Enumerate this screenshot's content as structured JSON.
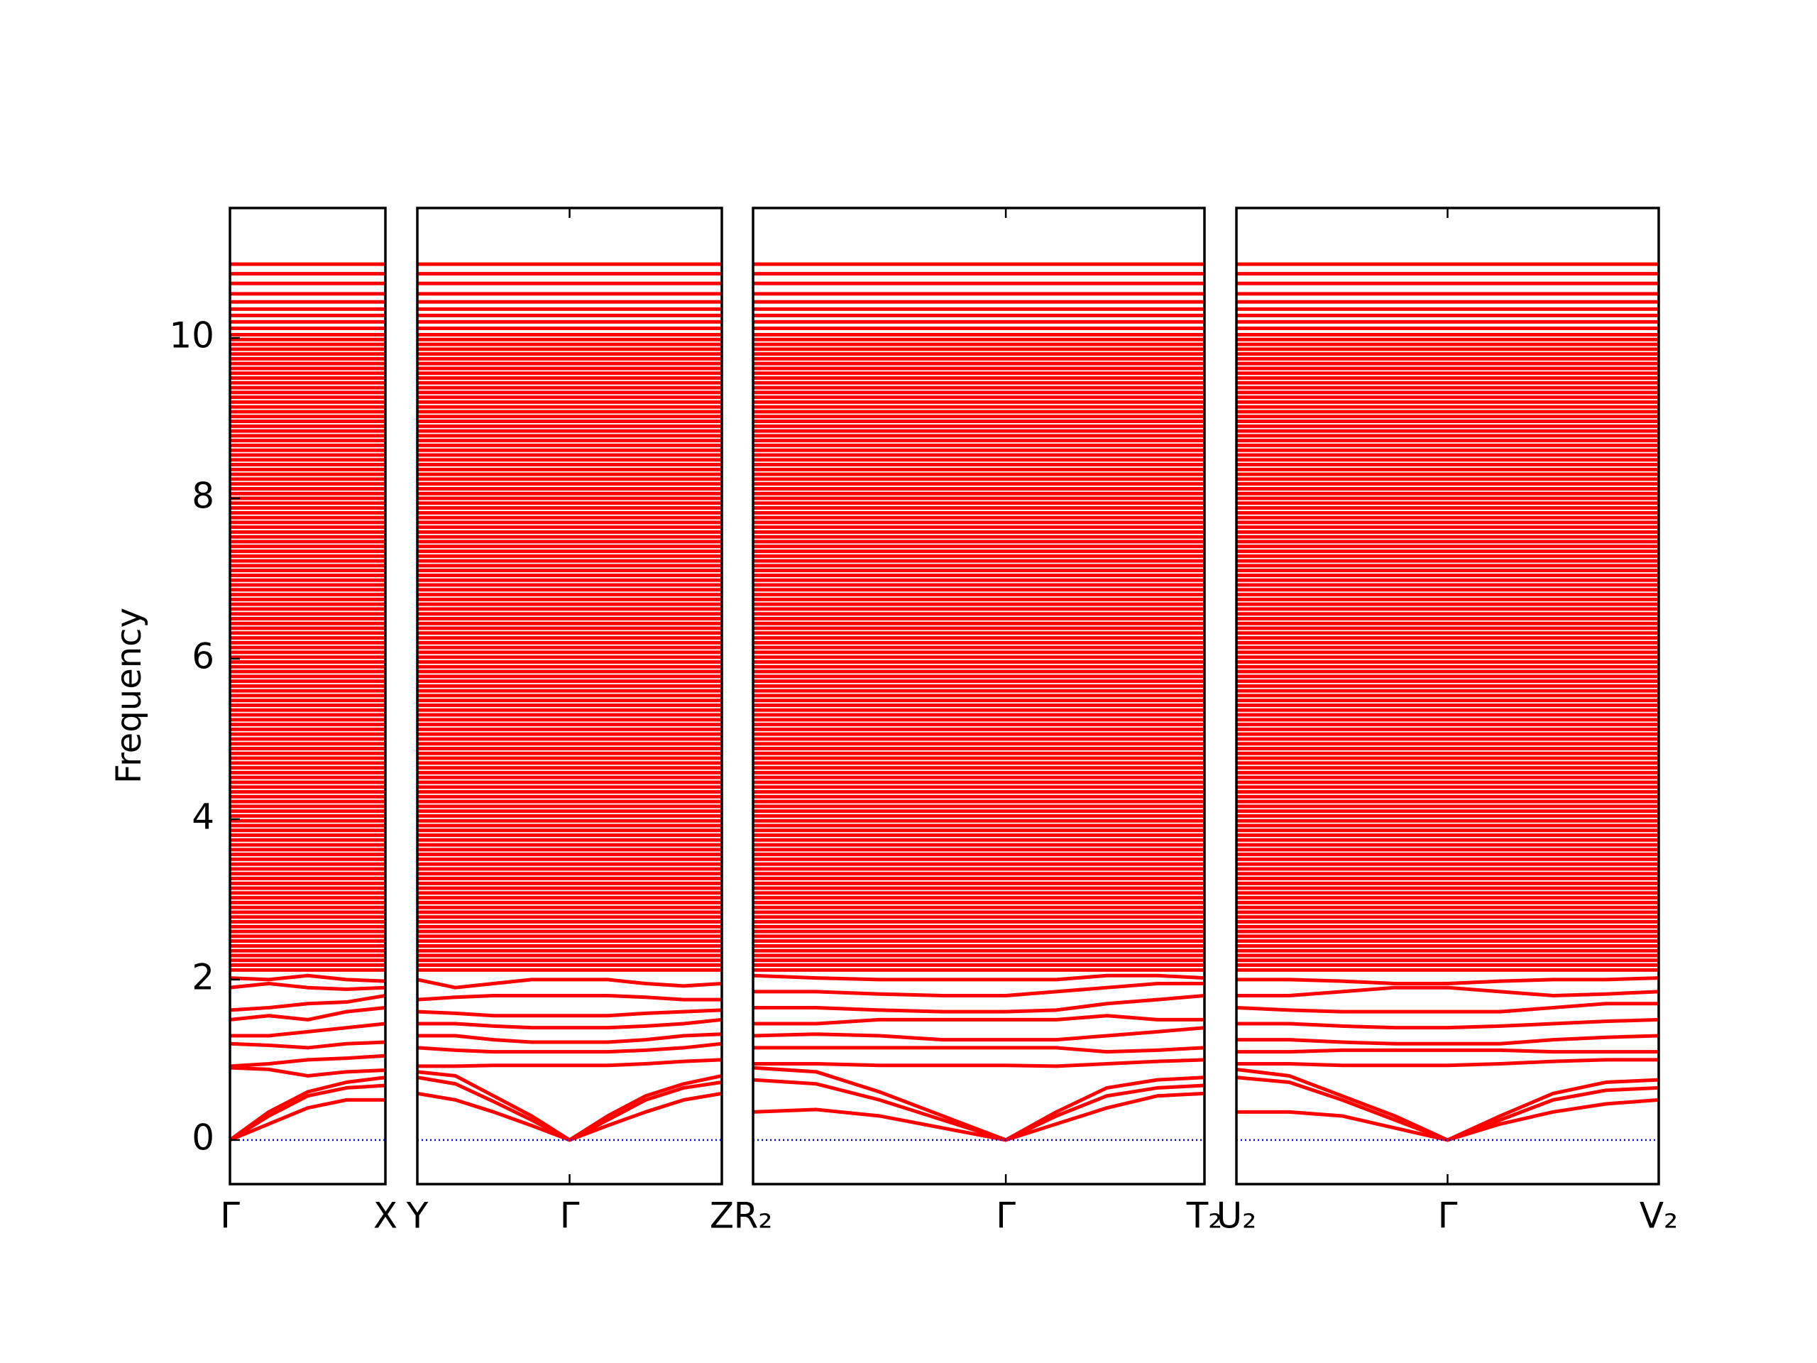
{
  "chart_data": {
    "type": "line",
    "ylabel": "Frequency",
    "ylim": [
      -0.55,
      11.62
    ],
    "yticks": [
      0,
      2,
      4,
      6,
      8,
      10
    ],
    "color": "#ff0000",
    "hline": 0,
    "hline_color": "#0000ff",
    "panels": [
      {
        "xlim": [
          0,
          1
        ],
        "xticks": [
          {
            "value": 0,
            "label": "Γ"
          },
          {
            "value": 1,
            "label": "X"
          }
        ],
        "x": [
          0,
          0.25,
          0.5,
          0.75,
          1
        ],
        "series": [
          {
            "values": [
              0,
              0.2,
              0.4,
              0.5,
              0.5
            ]
          },
          {
            "values": [
              0,
              0.3,
              0.55,
              0.65,
              0.68
            ]
          },
          {
            "values": [
              0,
              0.35,
              0.6,
              0.72,
              0.78
            ]
          },
          {
            "values": [
              0.9,
              0.88,
              0.8,
              0.85,
              0.87
            ]
          },
          {
            "values": [
              0.92,
              0.95,
              1.0,
              1.02,
              1.05
            ]
          },
          {
            "values": [
              1.2,
              1.18,
              1.15,
              1.2,
              1.22
            ]
          },
          {
            "values": [
              1.3,
              1.3,
              1.35,
              1.4,
              1.45
            ]
          },
          {
            "values": [
              1.5,
              1.55,
              1.5,
              1.6,
              1.65
            ]
          },
          {
            "values": [
              1.62,
              1.65,
              1.7,
              1.72,
              1.8
            ]
          },
          {
            "values": [
              1.9,
              1.95,
              1.9,
              1.88,
              1.9
            ]
          },
          {
            "values": [
              2.02,
              2.0,
              2.05,
              2.0,
              1.98
            ]
          }
        ]
      },
      {
        "xlim": [
          0,
          2
        ],
        "xticks": [
          {
            "value": 0,
            "label": "Y"
          },
          {
            "value": 1,
            "label": "Γ"
          },
          {
            "value": 2,
            "label": "Z"
          }
        ],
        "x": [
          0,
          0.25,
          0.5,
          0.75,
          1,
          1.25,
          1.5,
          1.75,
          2
        ],
        "series": [
          {
            "values": [
              0.58,
              0.5,
              0.35,
              0.18,
              0,
              0.18,
              0.35,
              0.5,
              0.58
            ]
          },
          {
            "values": [
              0.78,
              0.7,
              0.48,
              0.25,
              0,
              0.25,
              0.5,
              0.65,
              0.72
            ]
          },
          {
            "values": [
              0.85,
              0.8,
              0.55,
              0.3,
              0,
              0.3,
              0.55,
              0.7,
              0.8
            ]
          },
          {
            "values": [
              0.92,
              0.92,
              0.93,
              0.93,
              0.93,
              0.93,
              0.95,
              0.98,
              1.0
            ]
          },
          {
            "values": [
              1.15,
              1.12,
              1.1,
              1.1,
              1.1,
              1.1,
              1.12,
              1.15,
              1.2
            ]
          },
          {
            "values": [
              1.3,
              1.3,
              1.25,
              1.22,
              1.22,
              1.22,
              1.25,
              1.3,
              1.32
            ]
          },
          {
            "values": [
              1.45,
              1.45,
              1.42,
              1.4,
              1.4,
              1.4,
              1.42,
              1.45,
              1.5
            ]
          },
          {
            "values": [
              1.6,
              1.58,
              1.55,
              1.55,
              1.55,
              1.55,
              1.58,
              1.6,
              1.62
            ]
          },
          {
            "values": [
              1.75,
              1.78,
              1.8,
              1.8,
              1.8,
              1.8,
              1.78,
              1.75,
              1.75
            ]
          },
          {
            "values": [
              2.0,
              1.9,
              1.95,
              2.0,
              2.0,
              2.0,
              1.95,
              1.92,
              1.95
            ]
          }
        ]
      },
      {
        "xlim": [
          0,
          1.786
        ],
        "xticks": [
          {
            "value": 0,
            "label": "R₂"
          },
          {
            "value": 1,
            "label": "Γ"
          },
          {
            "value": 1.786,
            "label": "T₂"
          }
        ],
        "x": [
          0,
          0.25,
          0.5,
          0.75,
          1,
          1.2,
          1.4,
          1.6,
          1.786
        ],
        "series": [
          {
            "values": [
              0.35,
              0.38,
              0.3,
              0.15,
              0,
              0.2,
              0.4,
              0.55,
              0.58
            ]
          },
          {
            "values": [
              0.75,
              0.7,
              0.5,
              0.25,
              0,
              0.3,
              0.55,
              0.65,
              0.68
            ]
          },
          {
            "values": [
              0.9,
              0.85,
              0.6,
              0.3,
              0,
              0.35,
              0.65,
              0.75,
              0.78
            ]
          },
          {
            "values": [
              0.95,
              0.95,
              0.93,
              0.93,
              0.93,
              0.92,
              0.95,
              0.98,
              1.0
            ]
          },
          {
            "values": [
              1.15,
              1.15,
              1.15,
              1.15,
              1.15,
              1.15,
              1.1,
              1.12,
              1.15
            ]
          },
          {
            "values": [
              1.3,
              1.32,
              1.3,
              1.25,
              1.25,
              1.25,
              1.3,
              1.35,
              1.4
            ]
          },
          {
            "values": [
              1.45,
              1.45,
              1.5,
              1.5,
              1.5,
              1.5,
              1.55,
              1.5,
              1.5
            ]
          },
          {
            "values": [
              1.65,
              1.65,
              1.62,
              1.6,
              1.6,
              1.62,
              1.7,
              1.75,
              1.8
            ]
          },
          {
            "values": [
              1.85,
              1.85,
              1.82,
              1.8,
              1.8,
              1.85,
              1.9,
              1.95,
              1.95
            ]
          },
          {
            "values": [
              2.05,
              2.02,
              2.0,
              2.0,
              2.0,
              2.0,
              2.05,
              2.05,
              2.02
            ]
          }
        ]
      },
      {
        "xlim": [
          0,
          2
        ],
        "xticks": [
          {
            "value": 0,
            "label": "U₂"
          },
          {
            "value": 1,
            "label": "Γ"
          },
          {
            "value": 2,
            "label": "V₂"
          }
        ],
        "x": [
          0,
          0.25,
          0.5,
          0.75,
          1,
          1.25,
          1.5,
          1.75,
          2
        ],
        "series": [
          {
            "values": [
              0.35,
              0.35,
              0.3,
              0.15,
              0,
              0.2,
              0.35,
              0.45,
              0.5
            ]
          },
          {
            "values": [
              0.78,
              0.72,
              0.5,
              0.25,
              0,
              0.25,
              0.5,
              0.62,
              0.65
            ]
          },
          {
            "values": [
              0.88,
              0.8,
              0.55,
              0.3,
              0,
              0.3,
              0.58,
              0.72,
              0.75
            ]
          },
          {
            "values": [
              0.95,
              0.95,
              0.93,
              0.93,
              0.93,
              0.95,
              0.98,
              1.0,
              1.0
            ]
          },
          {
            "values": [
              1.1,
              1.1,
              1.12,
              1.12,
              1.12,
              1.12,
              1.1,
              1.1,
              1.1
            ]
          },
          {
            "values": [
              1.25,
              1.25,
              1.22,
              1.2,
              1.2,
              1.2,
              1.25,
              1.28,
              1.3
            ]
          },
          {
            "values": [
              1.45,
              1.45,
              1.42,
              1.4,
              1.4,
              1.42,
              1.45,
              1.48,
              1.5
            ]
          },
          {
            "values": [
              1.65,
              1.62,
              1.6,
              1.6,
              1.6,
              1.6,
              1.65,
              1.7,
              1.7
            ]
          },
          {
            "values": [
              1.8,
              1.8,
              1.85,
              1.9,
              1.9,
              1.85,
              1.8,
              1.82,
              1.85
            ]
          },
          {
            "values": [
              2.0,
              2.0,
              1.98,
              1.95,
              1.95,
              1.98,
              2.0,
              2.0,
              2.02
            ]
          }
        ]
      }
    ],
    "flat_bands": [
      2.12,
      2.18,
      2.24,
      2.3,
      2.36,
      2.42,
      2.48,
      2.54,
      2.6,
      2.66,
      2.72,
      2.78,
      2.84,
      2.9,
      2.96,
      3.02,
      3.08,
      3.14,
      3.2,
      3.26,
      3.32,
      3.38,
      3.44,
      3.5,
      3.56,
      3.62,
      3.68,
      3.74,
      3.8,
      3.86,
      3.92,
      3.98,
      4.04,
      4.1,
      4.16,
      4.22,
      4.28,
      4.34,
      4.4,
      4.46,
      4.52,
      4.58,
      4.64,
      4.7,
      4.76,
      4.82,
      4.88,
      4.94,
      5,
      5.06,
      5.12,
      5.18,
      5.24,
      5.3,
      5.36,
      5.42,
      5.48,
      5.54,
      5.6,
      5.66,
      5.72,
      5.78,
      5.84,
      5.9,
      5.96,
      6.02,
      6.08,
      6.14,
      6.2,
      6.26,
      6.32,
      6.38,
      6.44,
      6.5,
      6.56,
      6.62,
      6.68,
      6.74,
      6.8,
      6.86,
      6.92,
      6.98,
      7.04,
      7.1,
      7.16,
      7.22,
      7.28,
      7.34,
      7.4,
      7.46,
      7.52,
      7.58,
      7.64,
      7.7,
      7.76,
      7.82,
      7.88,
      7.94,
      8,
      8.06,
      8.12,
      8.18,
      8.24,
      8.3,
      8.36,
      8.42,
      8.48,
      8.54,
      8.6,
      8.66,
      8.72,
      8.78,
      8.84,
      8.9,
      8.96,
      9.02,
      9.08,
      9.14,
      9.2,
      9.26,
      9.32,
      9.38,
      9.44,
      9.5,
      9.56,
      9.62,
      9.68,
      9.74,
      9.8,
      9.86,
      9.92,
      9.98,
      10.04,
      10.12,
      10.2,
      10.28,
      10.36,
      10.45,
      10.55,
      10.68,
      10.8,
      10.92
    ]
  }
}
